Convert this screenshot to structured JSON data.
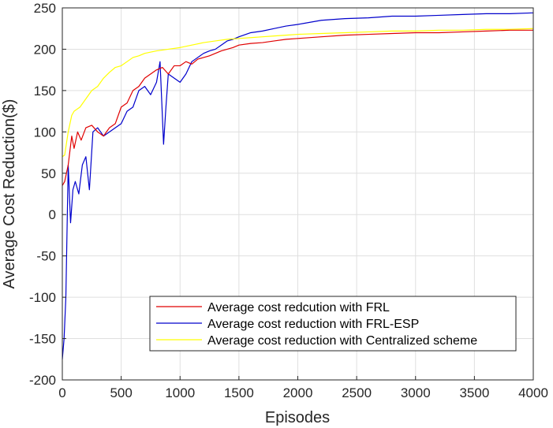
{
  "chart_data": {
    "type": "line",
    "title": "",
    "xlabel": "Episodes",
    "ylabel": "Average Cost Reduction($)",
    "xlim": [
      0,
      4000
    ],
    "ylim": [
      -200,
      250
    ],
    "xticks": [
      0,
      500,
      1000,
      1500,
      2000,
      2500,
      3000,
      3500,
      4000
    ],
    "yticks": [
      -200,
      -150,
      -100,
      -50,
      0,
      50,
      100,
      150,
      200,
      250
    ],
    "grid": true,
    "legend_position": "bottom-right",
    "series": [
      {
        "name": "Average cost redcution with FRL",
        "color": "#e00000",
        "x": [
          0,
          20,
          50,
          80,
          100,
          130,
          160,
          200,
          250,
          300,
          350,
          400,
          450,
          500,
          550,
          600,
          650,
          700,
          750,
          800,
          850,
          900,
          950,
          1000,
          1050,
          1100,
          1150,
          1200,
          1250,
          1300,
          1350,
          1400,
          1450,
          1500,
          1600,
          1700,
          1800,
          1900,
          2000,
          2200,
          2400,
          2600,
          2800,
          3000,
          3200,
          3400,
          3600,
          3800,
          4000
        ],
        "y": [
          35,
          40,
          60,
          95,
          80,
          100,
          90,
          105,
          108,
          100,
          95,
          105,
          110,
          130,
          135,
          150,
          155,
          165,
          170,
          175,
          178,
          170,
          180,
          180,
          185,
          182,
          188,
          190,
          192,
          195,
          198,
          200,
          202,
          205,
          207,
          208,
          210,
          212,
          213,
          215,
          217,
          218,
          219,
          220,
          220,
          221,
          222,
          223,
          223
        ]
      },
      {
        "name": "Average cost reduction with FRL-ESP",
        "color": "#0000cc",
        "x": [
          0,
          15,
          30,
          50,
          70,
          90,
          110,
          140,
          170,
          200,
          230,
          260,
          300,
          350,
          400,
          450,
          500,
          550,
          600,
          650,
          700,
          750,
          800,
          830,
          860,
          880,
          900,
          950,
          1000,
          1050,
          1100,
          1150,
          1200,
          1250,
          1300,
          1350,
          1400,
          1450,
          1500,
          1600,
          1700,
          1800,
          1900,
          2000,
          2200,
          2400,
          2600,
          2800,
          3000,
          3200,
          3400,
          3600,
          3800,
          4000
        ],
        "y": [
          -175,
          -150,
          -100,
          60,
          -10,
          30,
          40,
          25,
          60,
          70,
          30,
          100,
          105,
          95,
          100,
          105,
          110,
          125,
          130,
          150,
          155,
          145,
          160,
          185,
          85,
          130,
          170,
          165,
          160,
          170,
          185,
          190,
          195,
          198,
          200,
          205,
          210,
          212,
          215,
          220,
          222,
          225,
          228,
          230,
          235,
          237,
          238,
          240,
          240,
          241,
          242,
          243,
          243,
          244
        ]
      },
      {
        "name": "Average cost reduction with Centralized scheme",
        "color": "#ffff00",
        "x": [
          0,
          20,
          50,
          80,
          100,
          150,
          200,
          250,
          300,
          350,
          400,
          450,
          500,
          550,
          600,
          650,
          700,
          800,
          900,
          1000,
          1100,
          1200,
          1300,
          1400,
          1500,
          1600,
          1700,
          1800,
          1900,
          2000,
          2200,
          2400,
          2600,
          2800,
          3000,
          3200,
          3400,
          3600,
          3800,
          4000
        ],
        "y": [
          70,
          72,
          100,
          120,
          125,
          130,
          140,
          150,
          155,
          165,
          172,
          178,
          180,
          185,
          190,
          192,
          195,
          198,
          200,
          202,
          205,
          208,
          210,
          212,
          213,
          214,
          215,
          216,
          217,
          218,
          219,
          220,
          221,
          222,
          222,
          223,
          223,
          224,
          224,
          225
        ]
      }
    ]
  }
}
